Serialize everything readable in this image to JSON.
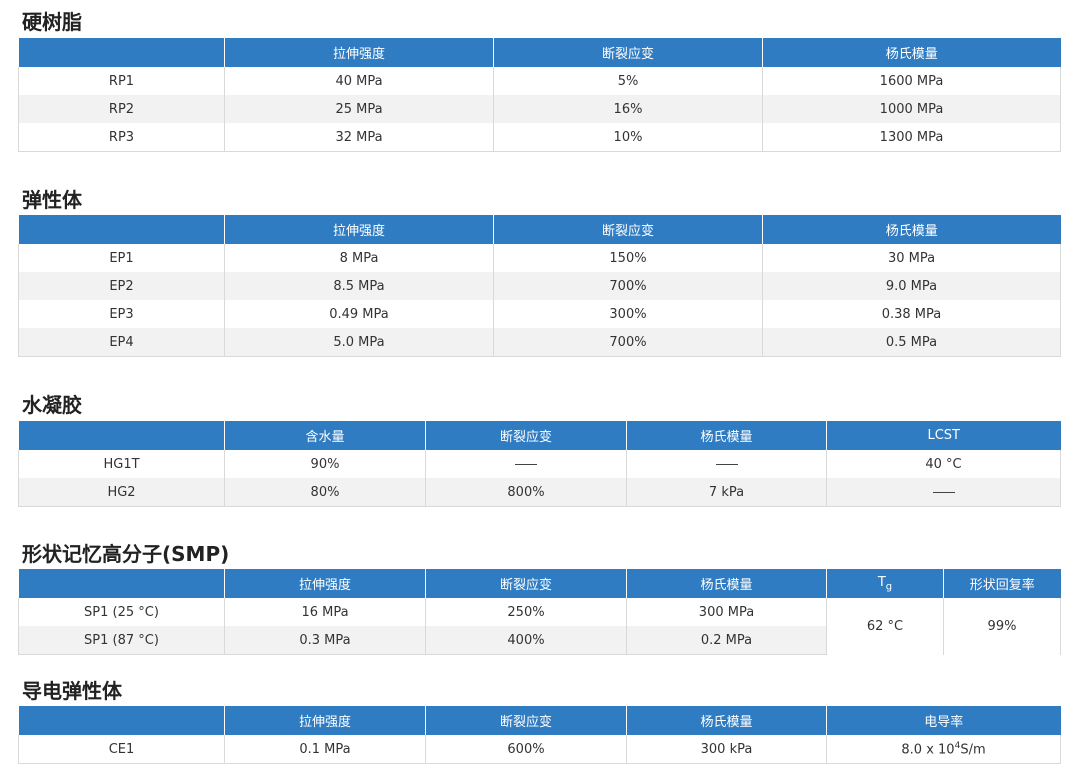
{
  "rigid": {
    "title": "硬树脂",
    "headers": [
      "",
      "拉伸强度",
      "断裂应变",
      "杨氏模量"
    ],
    "rows": [
      [
        "RP1",
        "40 MPa",
        "5%",
        "1600 MPa"
      ],
      [
        "RP2",
        "25 MPa",
        "16%",
        "1000 MPa"
      ],
      [
        "RP3",
        "32 MPa",
        "10%",
        "1300 MPa"
      ]
    ]
  },
  "elastomer": {
    "title": "弹性体",
    "headers": [
      "",
      "拉伸强度",
      "断裂应变",
      "杨氏模量"
    ],
    "rows": [
      [
        "EP1",
        "8 MPa",
        "150%",
        "30 MPa"
      ],
      [
        "EP2",
        "8.5 MPa",
        "700%",
        "9.0 MPa"
      ],
      [
        "EP3",
        "0.49 MPa",
        "300%",
        "0.38 MPa"
      ],
      [
        "EP4",
        "5.0 MPa",
        "700%",
        "0.5 MPa"
      ]
    ]
  },
  "hydrogel": {
    "title": "水凝胶",
    "headers": [
      "",
      "含水量",
      "断裂应变",
      "杨氏模量",
      "LCST"
    ],
    "rows": [
      [
        "HG1T",
        "90%",
        "",
        "",
        "40 °C"
      ],
      [
        "HG2",
        "80%",
        "800%",
        "7 kPa",
        ""
      ]
    ]
  },
  "smp": {
    "title": "形状记忆高分子(SMP)",
    "headers": [
      "",
      "拉伸强度",
      "断裂应变",
      "杨氏模量",
      "T",
      "形状回复率"
    ],
    "tg_sub": "g",
    "rows": [
      [
        "SP1 (25 °C)",
        "16 MPa",
        "250%",
        "300 MPa"
      ],
      [
        "SP1 (87 °C)",
        "0.3 MPa",
        "400%",
        "0.2 MPa"
      ]
    ],
    "tg_value": "62 °C",
    "recovery_value": "99%"
  },
  "conductive": {
    "title": "导电弹性体",
    "headers": [
      "",
      "拉伸强度",
      "断裂应变",
      "杨氏模量",
      "电导率"
    ],
    "rows": [
      [
        "CE1",
        "0.1 MPa",
        "600%",
        "300 kPa"
      ]
    ],
    "conductivity_base": "8.0 x 10",
    "conductivity_exp": "4",
    "conductivity_unit": "S/m"
  }
}
